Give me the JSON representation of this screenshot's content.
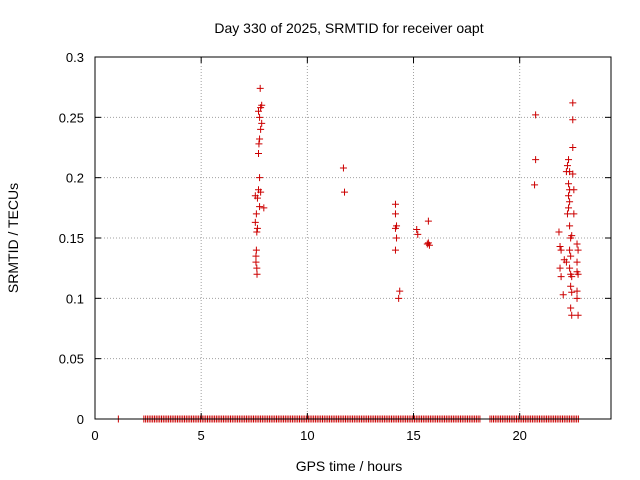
{
  "chart_data": {
    "type": "scatter",
    "title": "Day 330 of 2025, SRMTID for receiver oapt",
    "xlabel": "GPS time / hours",
    "ylabel": "SRMTID / TECUs",
    "xlim": [
      0,
      24.3
    ],
    "ylim": [
      0,
      0.3
    ],
    "xticks": [
      0,
      5,
      10,
      15,
      20
    ],
    "xtick_labels": [
      "0",
      "5",
      "10",
      "15",
      "20"
    ],
    "yticks": [
      0,
      0.05,
      0.1,
      0.15,
      0.2,
      0.25,
      0.3
    ],
    "ytick_labels": [
      "0",
      "0.05",
      "0.1",
      "0.15",
      "0.2",
      "0.25",
      "0.3"
    ],
    "grid": true,
    "marker": "plus",
    "color": "#cc0000",
    "series": [
      {
        "name": "SRMTID",
        "points": [
          [
            7.55,
            0.185
          ],
          [
            7.6,
            0.17
          ],
          [
            7.62,
            0.155
          ],
          [
            7.55,
            0.163
          ],
          [
            7.6,
            0.14
          ],
          [
            7.58,
            0.135
          ],
          [
            7.62,
            0.125
          ],
          [
            7.63,
            0.12
          ],
          [
            7.58,
            0.13
          ],
          [
            7.65,
            0.158
          ],
          [
            7.7,
            0.22
          ],
          [
            7.72,
            0.228
          ],
          [
            7.75,
            0.232
          ],
          [
            7.8,
            0.24
          ],
          [
            7.85,
            0.245
          ],
          [
            7.75,
            0.25
          ],
          [
            7.7,
            0.255
          ],
          [
            7.8,
            0.258
          ],
          [
            7.85,
            0.26
          ],
          [
            7.78,
            0.274
          ],
          [
            7.75,
            0.2
          ],
          [
            7.7,
            0.19
          ],
          [
            7.8,
            0.188
          ],
          [
            7.75,
            0.176
          ],
          [
            7.95,
            0.175
          ],
          [
            7.65,
            0.183
          ],
          [
            11.7,
            0.208
          ],
          [
            11.75,
            0.188
          ],
          [
            14.15,
            0.178
          ],
          [
            14.15,
            0.17
          ],
          [
            14.2,
            0.16
          ],
          [
            14.15,
            0.158
          ],
          [
            14.2,
            0.15
          ],
          [
            14.15,
            0.14
          ],
          [
            14.35,
            0.106
          ],
          [
            14.3,
            0.1
          ],
          [
            15.15,
            0.157
          ],
          [
            15.2,
            0.153
          ],
          [
            15.7,
            0.164
          ],
          [
            15.7,
            0.146
          ],
          [
            15.75,
            0.144
          ],
          [
            15.65,
            0.145
          ],
          [
            20.75,
            0.252
          ],
          [
            20.75,
            0.215
          ],
          [
            20.7,
            0.194
          ],
          [
            21.85,
            0.155
          ],
          [
            21.9,
            0.143
          ],
          [
            21.95,
            0.14
          ],
          [
            21.9,
            0.125
          ],
          [
            21.95,
            0.118
          ],
          [
            22.05,
            0.103
          ],
          [
            22.1,
            0.132
          ],
          [
            22.2,
            0.13
          ],
          [
            22.2,
            0.205
          ],
          [
            22.25,
            0.21
          ],
          [
            22.3,
            0.215
          ],
          [
            22.35,
            0.205
          ],
          [
            22.3,
            0.195
          ],
          [
            22.35,
            0.19
          ],
          [
            22.3,
            0.185
          ],
          [
            22.35,
            0.18
          ],
          [
            22.3,
            0.175
          ],
          [
            22.25,
            0.17
          ],
          [
            22.35,
            0.16
          ],
          [
            22.4,
            0.15
          ],
          [
            22.45,
            0.152
          ],
          [
            22.35,
            0.14
          ],
          [
            22.4,
            0.135
          ],
          [
            22.35,
            0.125
          ],
          [
            22.4,
            0.12
          ],
          [
            22.45,
            0.118
          ],
          [
            22.4,
            0.11
          ],
          [
            22.45,
            0.105
          ],
          [
            22.4,
            0.092
          ],
          [
            22.45,
            0.086
          ],
          [
            22.5,
            0.225
          ],
          [
            22.5,
            0.203
          ],
          [
            22.55,
            0.19
          ],
          [
            22.55,
            0.17
          ],
          [
            22.5,
            0.262
          ],
          [
            22.5,
            0.248
          ],
          [
            22.7,
            0.145
          ],
          [
            22.75,
            0.14
          ],
          [
            22.7,
            0.13
          ],
          [
            22.7,
            0.122
          ],
          [
            22.75,
            0.12
          ],
          [
            22.7,
            0.106
          ],
          [
            22.7,
            0.1
          ],
          [
            22.75,
            0.086
          ]
        ],
        "zero_coverage_hours": [
          [
            2.3,
            18.2
          ],
          [
            18.6,
            22.8
          ]
        ],
        "zero_value_points": [
          1.1
        ]
      }
    ]
  }
}
